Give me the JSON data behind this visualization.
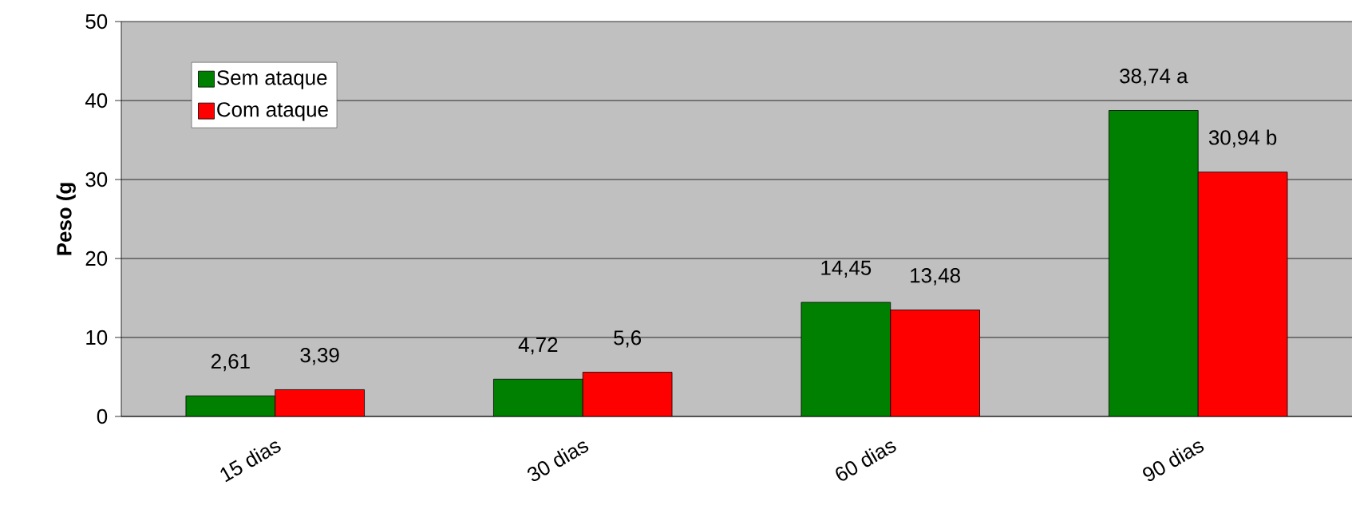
{
  "chart_data": {
    "type": "bar",
    "ylabel": "Peso (g",
    "categories": [
      "15 dias",
      "30 dias",
      "60 dias",
      "90 dias"
    ],
    "series": [
      {
        "name": "Sem ataque",
        "color": "#008000",
        "values": [
          2.61,
          4.72,
          14.45,
          38.74
        ],
        "value_labels": [
          "2,61",
          "4,72",
          "14,45",
          "38,74 a"
        ]
      },
      {
        "name": "Com ataque",
        "color": "#ff0000",
        "values": [
          3.39,
          5.6,
          13.48,
          30.94
        ],
        "value_labels": [
          "3,39",
          "5,6",
          "13,48",
          "30,94 b"
        ]
      }
    ],
    "ylim": [
      0,
      50
    ],
    "yticks": [
      0,
      10,
      20,
      30,
      40,
      50
    ],
    "grid": "y",
    "legend": "top left"
  }
}
